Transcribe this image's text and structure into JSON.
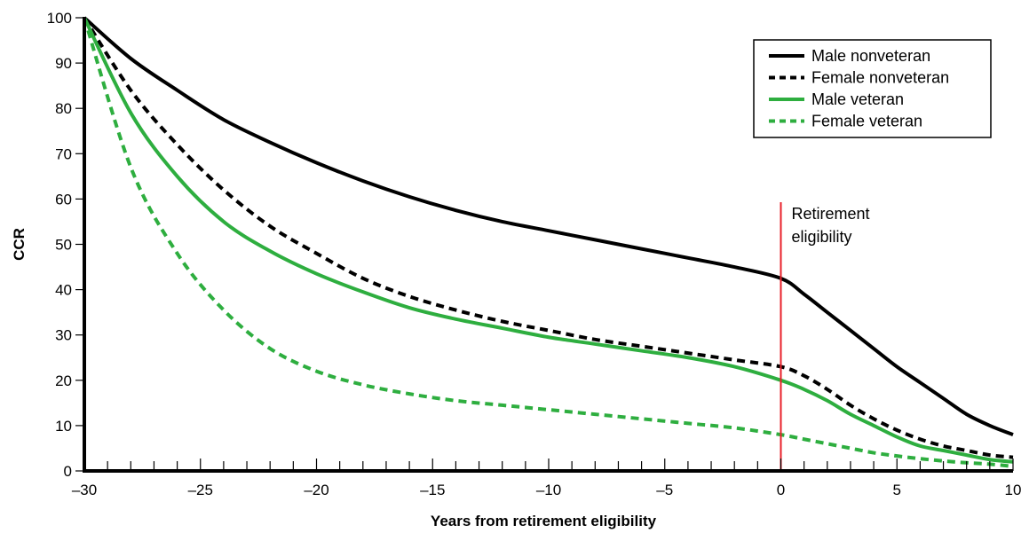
{
  "chart_data": {
    "type": "line",
    "xlabel": "Years from retirement eligibility",
    "ylabel": "CCR",
    "xlim": [
      -30,
      10
    ],
    "ylim": [
      0,
      100
    ],
    "x_ticks": [
      -30,
      -25,
      -20,
      -15,
      -10,
      -5,
      0,
      5,
      10
    ],
    "x_tick_labels": [
      "–30",
      "–25",
      "–20",
      "–15",
      "–10",
      "–5",
      "0",
      "5",
      "10"
    ],
    "y_ticks": [
      0,
      10,
      20,
      30,
      40,
      50,
      60,
      70,
      80,
      90,
      100
    ],
    "x_minor_step": 1,
    "grid": false,
    "legend_position": "top-right",
    "x": [
      -30,
      -28,
      -26,
      -24,
      -22,
      -20,
      -18,
      -16,
      -14,
      -12,
      -10,
      -8,
      -6,
      -4,
      -2,
      0,
      1,
      2,
      3,
      4,
      5,
      6,
      7,
      8,
      9,
      10
    ],
    "series": [
      {
        "name": "Male nonveteran",
        "color": "#000000",
        "dash": "solid",
        "values": [
          100,
          91,
          84,
          77.5,
          72.5,
          68,
          64,
          60.5,
          57.5,
          55,
          53,
          51,
          49,
          47,
          45,
          42.5,
          39,
          35,
          31,
          27,
          23,
          19.5,
          16,
          12.5,
          10,
          8
        ]
      },
      {
        "name": "Female nonveteran",
        "color": "#000000",
        "dash": "dashed",
        "values": [
          100,
          84,
          72,
          62,
          54,
          48,
          42.5,
          38.5,
          35.5,
          33,
          31,
          29,
          27.5,
          26,
          24.5,
          23,
          21,
          18,
          14.5,
          11.5,
          9,
          7,
          5.5,
          4.5,
          3.5,
          3
        ]
      },
      {
        "name": "Male veteran",
        "color": "#2eae3f",
        "dash": "solid",
        "values": [
          100,
          79,
          65,
          55,
          48.5,
          43.5,
          39.5,
          36,
          33.5,
          31.5,
          29.5,
          28,
          26.5,
          25,
          23,
          20,
          18,
          15.5,
          12.5,
          10,
          7.5,
          5.5,
          4.5,
          3.5,
          2.5,
          2
        ]
      },
      {
        "name": "Female veteran",
        "color": "#2eae3f",
        "dash": "dashed",
        "values": [
          100,
          67,
          48,
          35.5,
          27,
          22,
          19,
          17,
          15.5,
          14.5,
          13.5,
          12.5,
          11.5,
          10.5,
          9.5,
          8,
          7,
          6,
          5,
          4,
          3.3,
          2.7,
          2.2,
          1.8,
          1.5,
          1
        ]
      }
    ],
    "annotations": [
      {
        "x": 0,
        "line_color": "#e8202a",
        "text_lines": [
          "Retirement",
          "eligibility"
        ]
      }
    ]
  }
}
